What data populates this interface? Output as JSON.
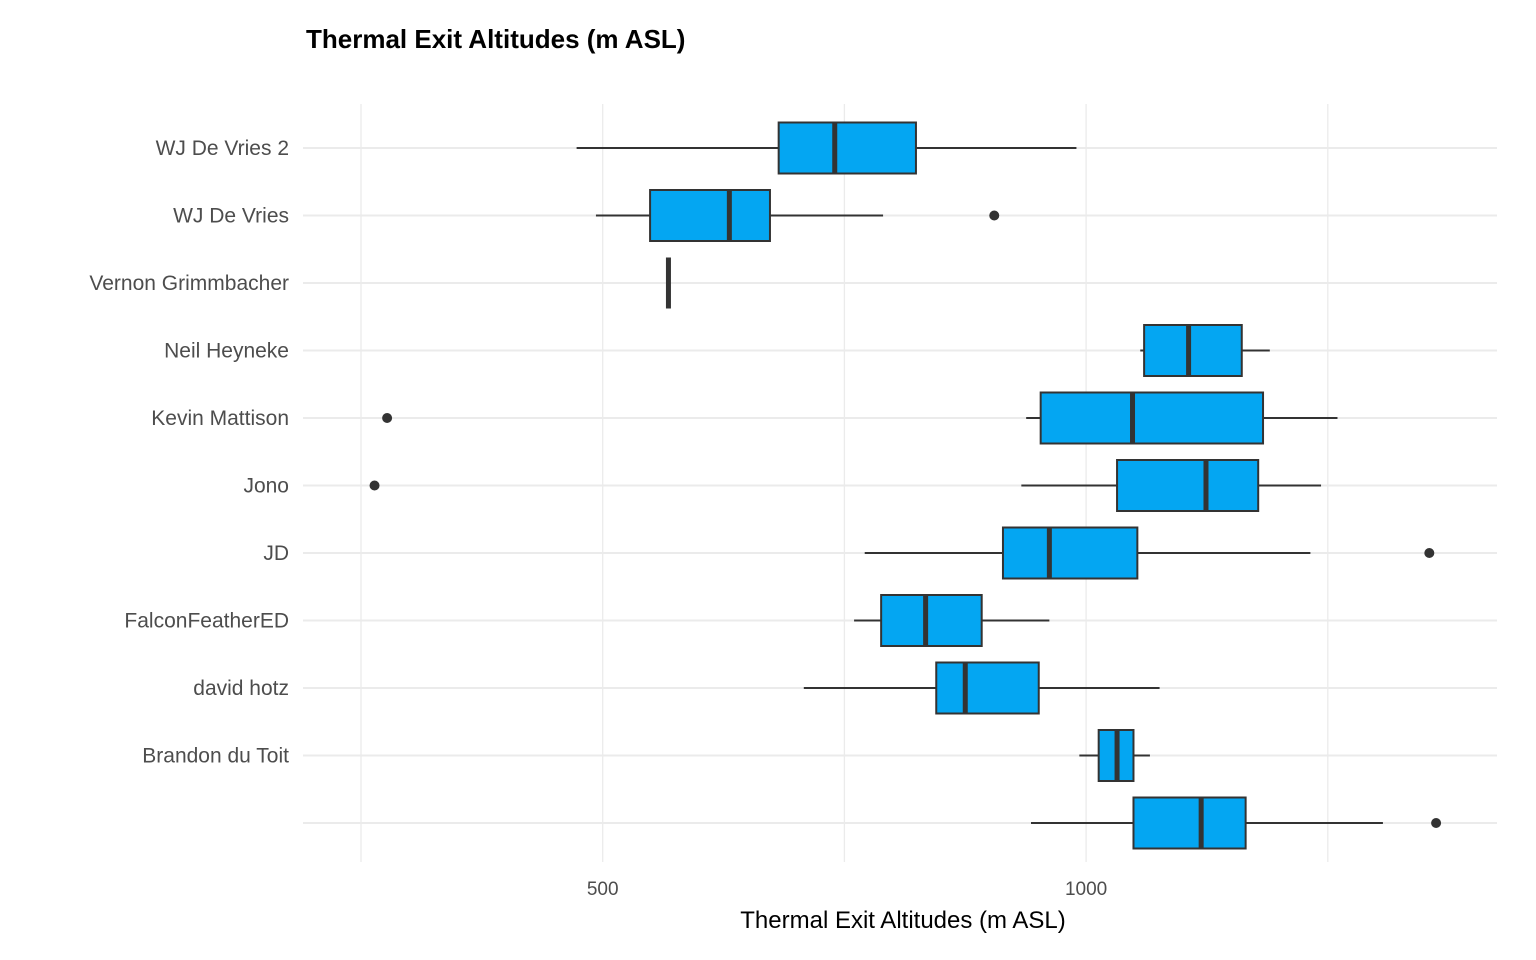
{
  "chart_data": {
    "type": "boxplot",
    "orientation": "horizontal",
    "title": "Thermal Exit Altitudes (m ASL)",
    "xlabel": "Thermal Exit Altitudes (m ASL)",
    "ylabel": "",
    "xlim": [
      190,
      1425
    ],
    "x_ticks": [
      {
        "value": 500,
        "label": "500"
      },
      {
        "value": 1000,
        "label": "1000"
      }
    ],
    "x_grid_values": [
      250,
      500,
      750,
      1000,
      1250
    ],
    "grid": true,
    "fill_color": "#04a6f2",
    "categories": [
      {
        "label": "WJ De Vries 2",
        "min": 473,
        "q1": 682,
        "median": 740,
        "q3": 824,
        "max": 990,
        "outliers": []
      },
      {
        "label": "WJ De Vries",
        "min": 493,
        "q1": 549,
        "median": 631,
        "q3": 673,
        "max": 790,
        "outliers": [
          905
        ]
      },
      {
        "label": "Vernon Grimmbacher",
        "min": 568,
        "q1": 568,
        "median": 568,
        "q3": 568,
        "max": 568,
        "outliers": []
      },
      {
        "label": "Neil Heyneke",
        "min": 1056,
        "q1": 1060,
        "median": 1106,
        "q3": 1161,
        "max": 1190,
        "outliers": []
      },
      {
        "label": "Kevin Mattison",
        "min": 938,
        "q1": 953,
        "median": 1048,
        "q3": 1183,
        "max": 1260,
        "outliers": [
          277
        ]
      },
      {
        "label": "Jono",
        "min": 933,
        "q1": 1032,
        "median": 1124,
        "q3": 1178,
        "max": 1243,
        "outliers": [
          264
        ]
      },
      {
        "label": "JD",
        "min": 771,
        "q1": 914,
        "median": 962,
        "q3": 1053,
        "max": 1232,
        "outliers": [
          1355
        ]
      },
      {
        "label": "FalconFeatherED",
        "min": 760,
        "q1": 788,
        "median": 834,
        "q3": 892,
        "max": 962,
        "outliers": []
      },
      {
        "label": "david hotz",
        "min": 708,
        "q1": 845,
        "median": 875,
        "q3": 951,
        "max": 1076,
        "outliers": []
      },
      {
        "label": "Brandon du Toit",
        "min": 993,
        "q1": 1013,
        "median": 1032,
        "q3": 1049,
        "max": 1066,
        "outliers": []
      },
      {
        "label": "",
        "min": 943,
        "q1": 1049,
        "median": 1119,
        "q3": 1165,
        "max": 1307,
        "outliers": [
          1362
        ]
      }
    ]
  }
}
